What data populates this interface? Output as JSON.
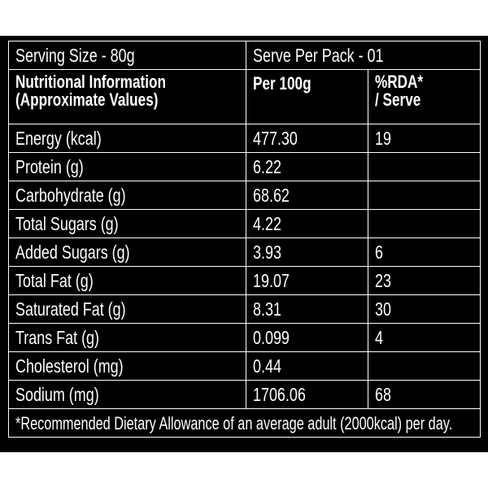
{
  "header": {
    "serving_size": "Serving Size - 80g",
    "serve_per_pack": "Serve Per Pack - 01"
  },
  "table": {
    "columns": [
      "Nutritional Information\n(Approximate Values)",
      "Per 100g",
      "%RDA*\n/ Serve"
    ],
    "rows": [
      [
        "Energy (kcal)",
        "477.30",
        "19"
      ],
      [
        "Protein (g)",
        "6.22",
        null
      ],
      [
        "Carbohydrate (g)",
        "68.62",
        null
      ],
      [
        "Total Sugars (g)",
        "4.22",
        null
      ],
      [
        "Added Sugars (g)",
        "3.93",
        "6"
      ],
      [
        "Total Fat (g)",
        "19.07",
        "23"
      ],
      [
        "Saturated Fat (g)",
        "8.31",
        "30"
      ],
      [
        "Trans Fat (g)",
        "0.099",
        "4"
      ],
      [
        "Cholesterol (mg)",
        "0.44",
        null
      ],
      [
        "Sodium (mg)",
        "1706.06",
        "68"
      ]
    ]
  },
  "footnote": "*Recommended Dietary Allowance of an average adult (2000kcal) per day."
}
